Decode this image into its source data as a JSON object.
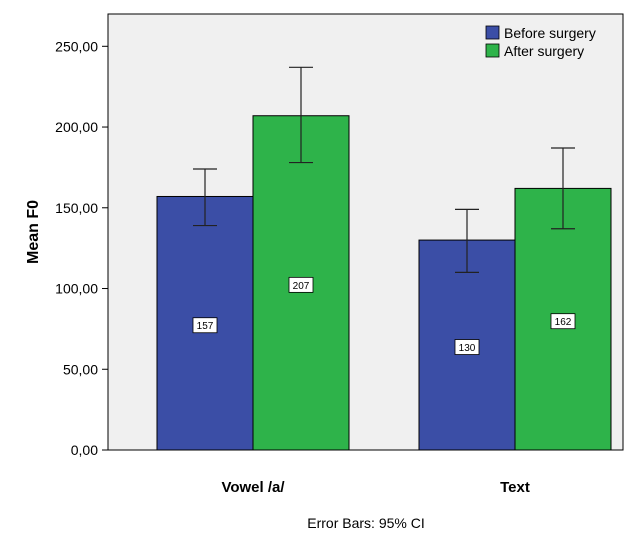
{
  "chart_data": {
    "type": "bar",
    "title": "",
    "xlabel": "",
    "ylabel": "Mean F0",
    "ylim": [
      0,
      270
    ],
    "yticks": [
      "0,00",
      "50,00",
      "100,00",
      "150,00",
      "200,00",
      "250,00"
    ],
    "ytick_values": [
      0,
      50,
      100,
      150,
      200,
      250
    ],
    "categories": [
      "Vowel /a/",
      "Text"
    ],
    "series": [
      {
        "name": "Before surgery",
        "color": "#3B4EA6",
        "values": [
          157,
          130
        ],
        "value_labels": [
          "157",
          "130"
        ],
        "ci_low": [
          139,
          110
        ],
        "ci_high": [
          174,
          149
        ]
      },
      {
        "name": "After surgery",
        "color": "#2EB34A",
        "values": [
          207,
          162
        ],
        "value_labels": [
          "207",
          "162"
        ],
        "ci_low": [
          178,
          137
        ],
        "ci_high": [
          237,
          187
        ]
      }
    ],
    "legend_position": "top-right",
    "grid": false,
    "background": "#F0F0F0",
    "footnote": "Error Bars: 95% CI"
  }
}
